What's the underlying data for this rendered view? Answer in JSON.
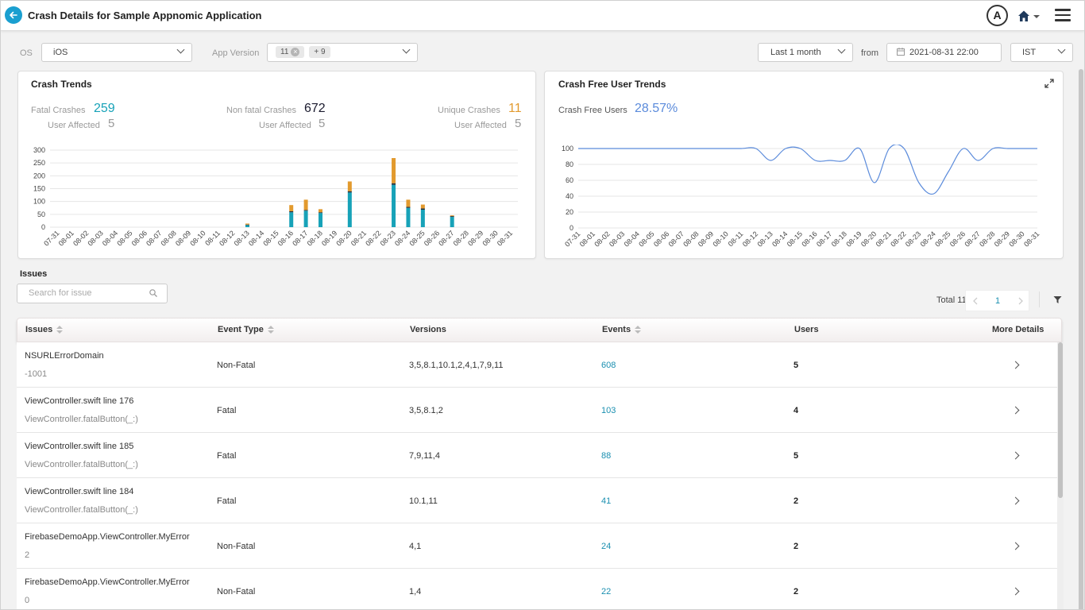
{
  "header": {
    "title": "Crash Details for Sample Appnomic Application",
    "avatar_initial": "A"
  },
  "filters": {
    "os_label": "OS",
    "os_value": "iOS",
    "app_version_label": "App Version",
    "app_version_chip": "11",
    "app_version_more": "+ 9",
    "range_value": "Last 1 month",
    "from_label": "from",
    "from_value": "2021-08-31 22:00",
    "timezone_value": "IST"
  },
  "crash_trends": {
    "title": "Crash Trends",
    "fatal_label": "Fatal Crashes",
    "fatal_value": "259",
    "fatal_users_label": "User Affected",
    "fatal_users_value": "5",
    "nonfatal_label": "Non fatal Crashes",
    "nonfatal_value": "672",
    "nonfatal_users_label": "User Affected",
    "nonfatal_users_value": "5",
    "unique_label": "Unique Crashes",
    "unique_value": "11",
    "unique_users_label": "User Affected",
    "unique_users_value": "5"
  },
  "crash_free": {
    "title": "Crash Free User Trends",
    "label": "Crash Free Users",
    "value": "28.57%"
  },
  "chart_data": [
    {
      "type": "bar",
      "stacked": true,
      "categories": [
        "07-31",
        "08-01",
        "08-02",
        "08-03",
        "08-04",
        "08-05",
        "08-06",
        "08-07",
        "08-08",
        "08-09",
        "08-10",
        "08-11",
        "08-12",
        "08-13",
        "08-14",
        "08-15",
        "08-16",
        "08-17",
        "08-18",
        "08-19",
        "08-20",
        "08-21",
        "08-22",
        "08-23",
        "08-24",
        "08-25",
        "08-26",
        "08-27",
        "08-28",
        "08-29",
        "08-30",
        "08-31"
      ],
      "series": [
        {
          "color": "#17a2b8",
          "values": [
            0,
            0,
            0,
            0,
            0,
            0,
            0,
            0,
            0,
            0,
            0,
            0,
            0,
            8,
            0,
            0,
            58,
            64,
            55,
            0,
            135,
            0,
            0,
            165,
            75,
            68,
            0,
            40,
            0,
            0,
            0,
            0
          ]
        },
        {
          "color": "#1f2d3d",
          "values": [
            0,
            0,
            0,
            0,
            0,
            0,
            0,
            0,
            0,
            0,
            0,
            0,
            0,
            2,
            0,
            0,
            4,
            3,
            3,
            0,
            5,
            0,
            0,
            6,
            4,
            5,
            0,
            3,
            0,
            0,
            0,
            0
          ]
        },
        {
          "color": "#e29a2e",
          "values": [
            0,
            0,
            0,
            0,
            0,
            0,
            0,
            0,
            0,
            0,
            0,
            0,
            0,
            4,
            0,
            0,
            24,
            40,
            12,
            0,
            38,
            0,
            0,
            98,
            28,
            15,
            0,
            3,
            0,
            0,
            0,
            0
          ]
        }
      ],
      "ylim": [
        0,
        300
      ],
      "yticks": [
        0,
        50,
        100,
        150,
        200,
        250,
        300
      ],
      "grid": true
    },
    {
      "type": "line",
      "x": [
        "07-31",
        "08-01",
        "08-02",
        "08-03",
        "08-04",
        "08-05",
        "08-06",
        "08-07",
        "08-08",
        "08-09",
        "08-10",
        "08-11",
        "08-12",
        "08-13",
        "08-14",
        "08-15",
        "08-16",
        "08-17",
        "08-18",
        "08-19",
        "08-20",
        "08-21",
        "08-22",
        "08-23",
        "08-24",
        "08-25",
        "08-26",
        "08-27",
        "08-28",
        "08-29",
        "08-30",
        "08-31"
      ],
      "series": [
        {
          "color": "#5b8bdb",
          "values": [
            100,
            100,
            100,
            100,
            100,
            100,
            100,
            100,
            100,
            100,
            100,
            100,
            100,
            85,
            100,
            100,
            85,
            85,
            85,
            100,
            57,
            100,
            100,
            57,
            43,
            71,
            100,
            85,
            100,
            100,
            100,
            100
          ]
        }
      ],
      "ylim": [
        0,
        100
      ],
      "yticks": [
        0,
        20,
        40,
        60,
        80,
        100
      ],
      "grid": true
    }
  ],
  "issues": {
    "section_label": "Issues",
    "search_placeholder": "Search for issue",
    "total_label": "Total 11",
    "current_page": "1",
    "columns": {
      "issues": "Issues",
      "event_type": "Event Type",
      "versions": "Versions",
      "events": "Events",
      "users": "Users",
      "more": "More Details"
    },
    "rows": [
      {
        "title": "NSURLErrorDomain",
        "sub": "-1001",
        "type": "Non-Fatal",
        "versions": "3,5,8.1,10.1,2,4,1,7,9,11",
        "events": "608",
        "users": "5"
      },
      {
        "title": "ViewController.swift line 176",
        "sub": "ViewController.fatalButton(_:)",
        "type": "Fatal",
        "versions": "3,5,8.1,2",
        "events": "103",
        "users": "4"
      },
      {
        "title": "ViewController.swift line 185",
        "sub": "ViewController.fatalButton(_:)",
        "type": "Fatal",
        "versions": "7,9,11,4",
        "events": "88",
        "users": "5"
      },
      {
        "title": "ViewController.swift line 184",
        "sub": "ViewController.fatalButton(_:)",
        "type": "Fatal",
        "versions": "10.1,11",
        "events": "41",
        "users": "2"
      },
      {
        "title": "FirebaseDemoApp.ViewController.MyError",
        "sub": "2",
        "type": "Non-Fatal",
        "versions": "4,1",
        "events": "24",
        "users": "2"
      },
      {
        "title": "FirebaseDemoApp.ViewController.MyError",
        "sub": "0",
        "type": "Non-Fatal",
        "versions": "1,4",
        "events": "22",
        "users": "2"
      }
    ]
  }
}
